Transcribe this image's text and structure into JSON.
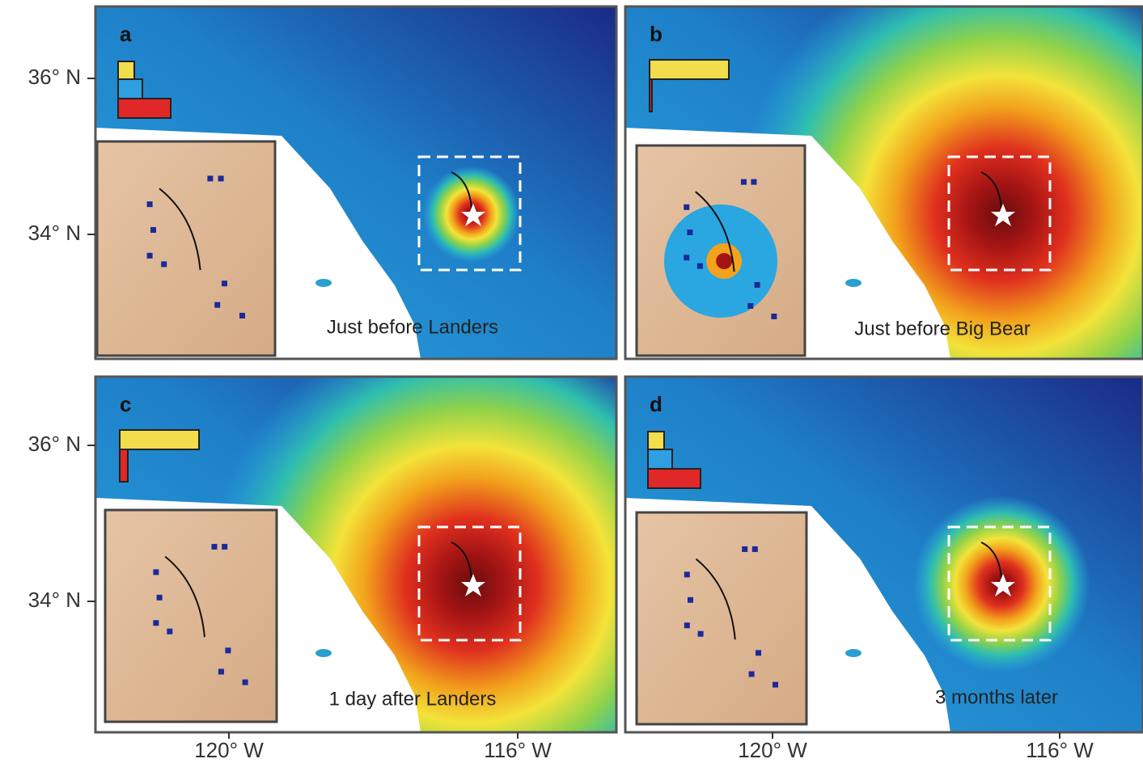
{
  "axes": {
    "y_labels": [
      "36° N",
      "34° N"
    ],
    "x_labels": [
      "120° W",
      "116° W"
    ]
  },
  "panels": [
    {
      "letter": "a",
      "caption": "Just before Landers"
    },
    {
      "letter": "b",
      "caption": "Just before Big Bear"
    },
    {
      "letter": "c",
      "caption": "1 day after Landers"
    },
    {
      "letter": "d",
      "caption": "3 months later"
    }
  ]
}
